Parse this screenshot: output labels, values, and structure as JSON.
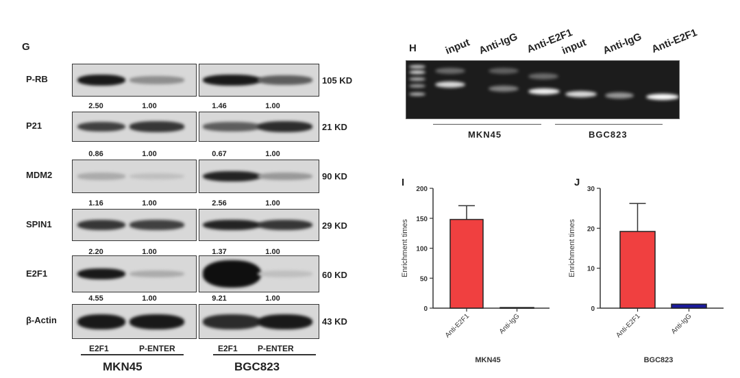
{
  "panel_g": {
    "letter": "G",
    "rows": [
      {
        "label": "P-RB",
        "kd": "105 KD",
        "values": [
          "2.50",
          "1.00",
          "1.46",
          "1.00"
        ]
      },
      {
        "label": "P21",
        "kd": "21 KD",
        "values": [
          "0.86",
          "1.00",
          "0.67",
          "1.00"
        ]
      },
      {
        "label": "MDM2",
        "kd": "90 KD",
        "values": [
          "1.16",
          "1.00",
          "2.56",
          "1.00"
        ]
      },
      {
        "label": "SPIN1",
        "kd": "29 KD",
        "values": [
          "2.20",
          "1.00",
          "1.37",
          "1.00"
        ]
      },
      {
        "label": "E2F1",
        "kd": "60 KD",
        "values": [
          "4.55",
          "1.00",
          "9.21",
          "1.00"
        ]
      },
      {
        "label": "β-Actin",
        "kd": "43 KD"
      }
    ],
    "lanes": [
      "E2F1",
      "P-ENTER",
      "E2F1",
      "P-ENTER"
    ],
    "cells": [
      "MKN45",
      "BGC823"
    ]
  },
  "panel_h": {
    "letter": "H",
    "lanes": [
      "input",
      "Anti-IgG",
      "Anti-E2F1",
      "input",
      "Anti-IgG",
      "Anti-E2F1"
    ],
    "cells": [
      "MKN45",
      "BGC823"
    ]
  },
  "chart_data": [
    {
      "panel": "I",
      "type": "bar",
      "categories": [
        "Anti-E2F1",
        "Anti-IgG"
      ],
      "values": [
        148,
        1
      ],
      "error_upper": [
        171,
        1
      ],
      "colors": [
        "#f04040",
        "#1a1a9a"
      ],
      "xlabel": "MKN45",
      "ylabel": "Enrichment times",
      "ylim": [
        0,
        200
      ],
      "yticks": [
        "0",
        "50",
        "100",
        "150",
        "200"
      ],
      "yticks_values": [
        0,
        50,
        100,
        150,
        200
      ]
    },
    {
      "panel": "J",
      "type": "bar",
      "categories": [
        "Anti-E2F1",
        "Anti-IgG"
      ],
      "values": [
        19.2,
        1.0
      ],
      "error_upper": [
        26.2,
        1.0
      ],
      "colors": [
        "#f04040",
        "#1a1a9a"
      ],
      "xlabel": "BGC823",
      "ylabel": "Enrichment times",
      "ylim": [
        0,
        30
      ],
      "yticks": [
        "0",
        "10",
        "20",
        "30"
      ],
      "yticks_values": [
        0,
        10,
        20,
        30
      ]
    }
  ]
}
